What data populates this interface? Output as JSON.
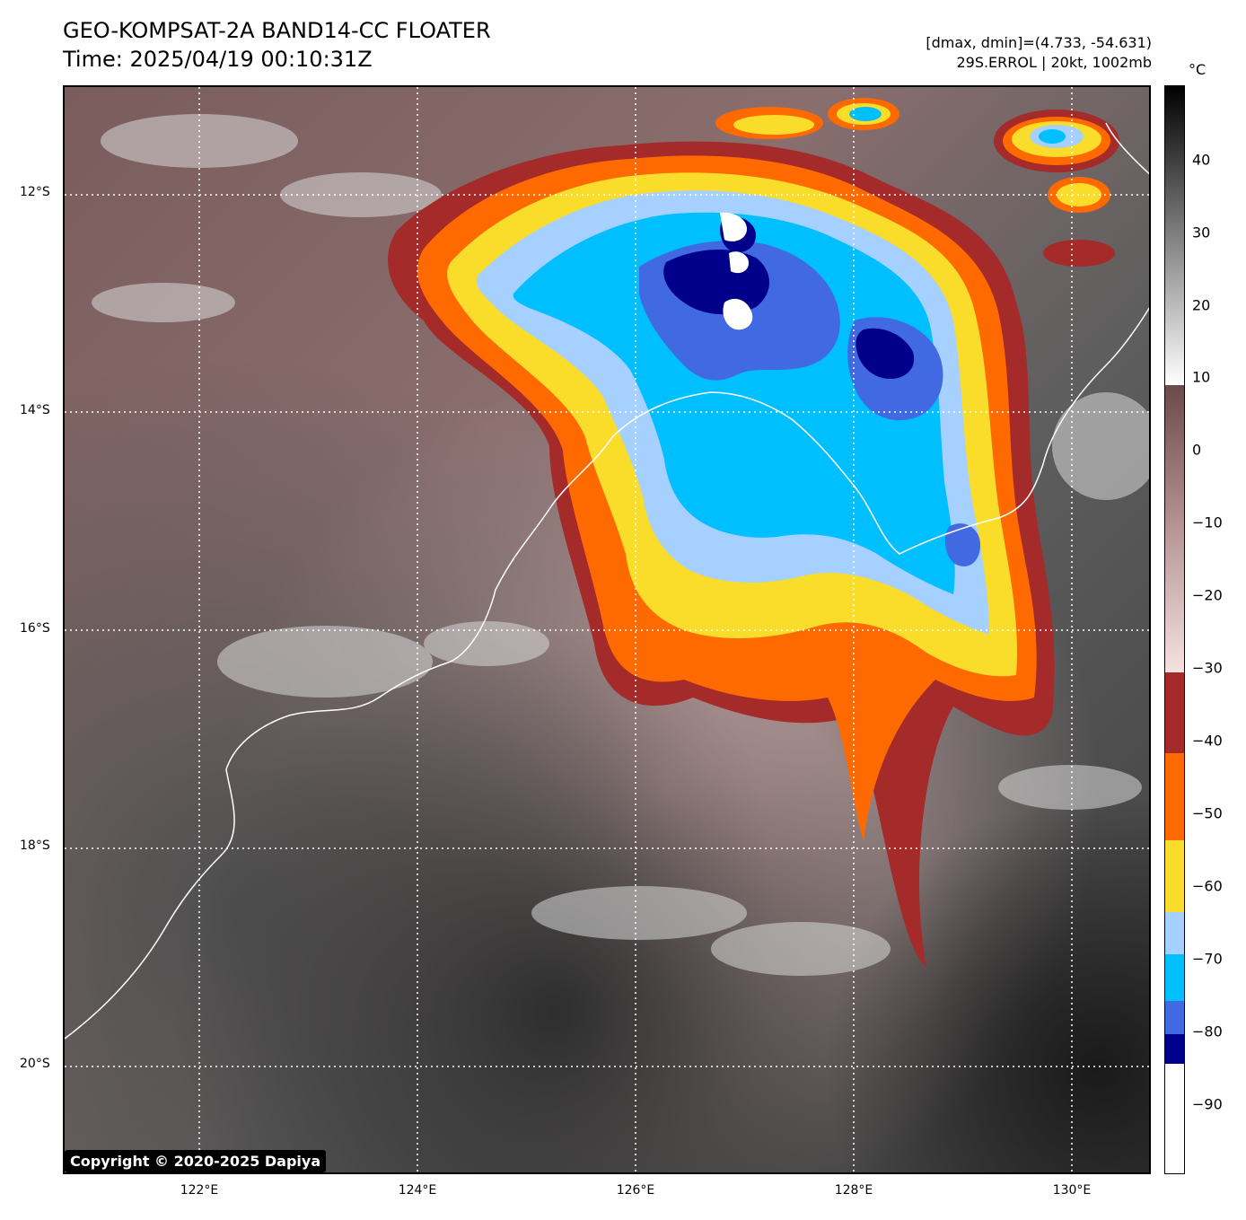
{
  "header": {
    "title": "GEO-KOMPSAT-2A BAND14-CC FLOATER",
    "time": "Time: 2025/04/19 00:10:31Z",
    "range": "[dmax, dmin]=(4.733, -54.631)",
    "storm": "29S.ERROL | 20kt, 1002mb"
  },
  "copyright": "Copyright © 2020-2025 Dapiya",
  "map": {
    "lat_labels": [
      "12°S",
      "14°S",
      "16°S",
      "18°S",
      "20°S"
    ],
    "lon_labels": [
      "122°E",
      "124°E",
      "126°E",
      "128°E",
      "130°E"
    ]
  },
  "colorbar": {
    "unit": "°C",
    "tick_labels": [
      "40",
      "30",
      "20",
      "10",
      "0",
      "−10",
      "−20",
      "−30",
      "−40",
      "−50",
      "−60",
      "−70",
      "−80",
      "−90"
    ],
    "colors": {
      "brown_lo": "#a52a2a",
      "orange": "#ff6a00",
      "yellow": "#fadc2a",
      "light_blue": "#a6d0ff",
      "sky_blue": "#00bfff",
      "royal_blue": "#4169e1",
      "navy": "#00008b"
    }
  }
}
